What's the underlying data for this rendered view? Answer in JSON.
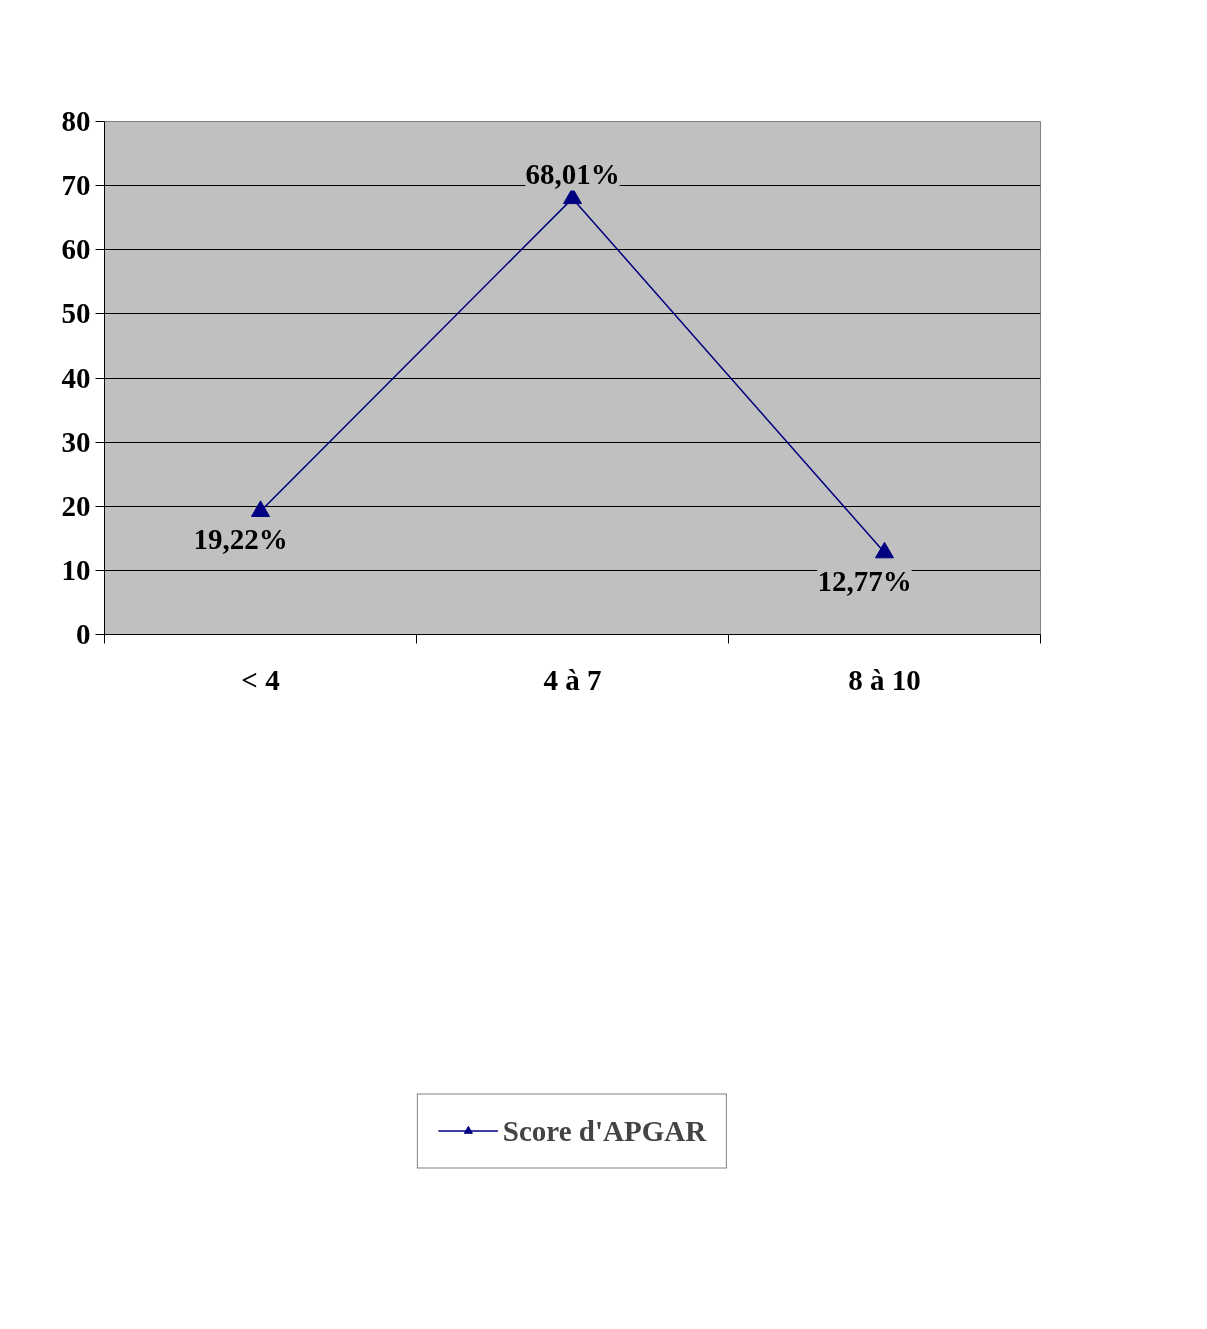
{
  "chart_data": {
    "type": "line",
    "categories": [
      "< 4",
      "4 à 7",
      "8 à 10"
    ],
    "series": [
      {
        "name": "Score d'APGAR",
        "color": "#000080",
        "values": [
          19.22,
          68.01,
          12.77
        ],
        "value_labels": [
          "19,22%",
          "68,01%",
          "12,77%"
        ]
      }
    ],
    "ylim": [
      0,
      80
    ],
    "yticks": [
      0,
      10,
      20,
      30,
      40,
      50,
      60,
      70,
      80
    ],
    "grid": "y",
    "legend": "bottom",
    "marker": "triangle",
    "line_style": "solid"
  }
}
